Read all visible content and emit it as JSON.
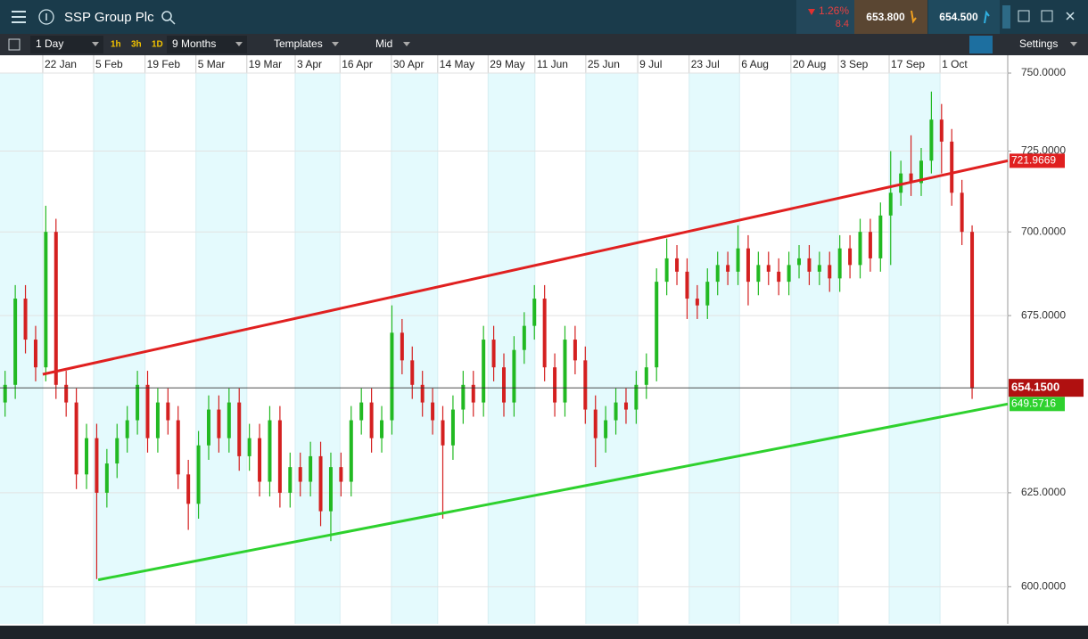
{
  "header": {
    "title": "SSP Group Plc",
    "change_pct": "1.26%",
    "change": "8.4",
    "sell": "653.800",
    "buy": "654.500"
  },
  "toolbar": {
    "interval": "1 Day",
    "quick": [
      "1h",
      "3h",
      "1D"
    ],
    "range": "9 Months",
    "templates": "Templates",
    "price_type": "Mid",
    "settings": "Settings"
  },
  "chart_data": {
    "type": "candlestick",
    "log_scale": true,
    "grid": true,
    "up_color": "#22b922",
    "down_color": "#d42020",
    "xlim": [
      0,
      198
    ],
    "xticks": [
      {
        "value": 8.4,
        "label": "22 Jan"
      },
      {
        "value": 18.4,
        "label": "5 Feb"
      },
      {
        "value": 28.5,
        "label": "19 Feb"
      },
      {
        "value": 38.5,
        "label": "5 Mar"
      },
      {
        "value": 48.5,
        "label": "19 Mar"
      },
      {
        "value": 58,
        "label": "3 Apr"
      },
      {
        "value": 66.8,
        "label": "16 Apr"
      },
      {
        "value": 76.9,
        "label": "30 Apr"
      },
      {
        "value": 86,
        "label": "14 May"
      },
      {
        "value": 95.9,
        "label": "29 May"
      },
      {
        "value": 105.1,
        "label": "11 Jun"
      },
      {
        "value": 115.1,
        "label": "25 Jun"
      },
      {
        "value": 125.3,
        "label": "9 Jul"
      },
      {
        "value": 135.4,
        "label": "23 Jul"
      },
      {
        "value": 145.3,
        "label": "6 Aug"
      },
      {
        "value": 155.4,
        "label": "20 Aug"
      },
      {
        "value": 164.7,
        "label": "3 Sep"
      },
      {
        "value": 174.7,
        "label": "17 Sep"
      },
      {
        "value": 184.7,
        "label": "1 Oct"
      }
    ],
    "ylim": [
      590.4,
      750
    ],
    "yticks": [
      {
        "value": 600,
        "label": "600.0000"
      },
      {
        "value": 625,
        "label": "625.0000"
      },
      {
        "value": 675,
        "label": "675.0000"
      },
      {
        "value": 700,
        "label": "700.0000"
      },
      {
        "value": 725,
        "label": "725.0000"
      },
      {
        "value": 750,
        "label": "750.0000"
      }
    ],
    "x": [
      1,
      3,
      5,
      7,
      9,
      11,
      13,
      15,
      17,
      19,
      21,
      23,
      25,
      27,
      29,
      31,
      33,
      35,
      37,
      39,
      41,
      43,
      45,
      47,
      49,
      51,
      53,
      55,
      57,
      59,
      61,
      63,
      65,
      67,
      69,
      71,
      73,
      75,
      77,
      79,
      81,
      83,
      85,
      87,
      89,
      91,
      93,
      95,
      97,
      99,
      101,
      103,
      105,
      107,
      109,
      111,
      113,
      115,
      117,
      119,
      121,
      123,
      125,
      127,
      129,
      131,
      133,
      135,
      137,
      139,
      141,
      143,
      145,
      147,
      149,
      151,
      153,
      155,
      157,
      159,
      161,
      163,
      165,
      167,
      169,
      171,
      173,
      175,
      177,
      179,
      181,
      183,
      185,
      187,
      189,
      191
    ],
    "open": [
      650,
      655,
      680,
      668,
      660,
      700,
      655,
      650,
      630,
      640,
      625,
      633,
      640,
      645,
      655,
      640,
      650,
      645,
      630,
      622,
      638,
      648,
      640,
      650,
      635,
      640,
      628,
      645,
      625,
      632,
      628,
      635,
      620,
      632,
      628,
      645,
      650,
      640,
      645,
      670,
      662,
      655,
      650,
      645,
      638,
      648,
      655,
      650,
      668,
      660,
      650,
      665,
      672,
      680,
      660,
      650,
      668,
      662,
      648,
      640,
      645,
      650,
      648,
      655,
      660,
      685,
      692,
      688,
      680,
      678,
      685,
      690,
      688,
      695,
      685,
      690,
      688,
      685,
      690,
      692,
      688,
      690,
      686,
      695,
      690,
      700,
      692,
      705,
      712,
      718,
      715,
      722,
      735,
      728,
      712,
      700
    ],
    "high": [
      659,
      684,
      684,
      672,
      708,
      704,
      659,
      654,
      644,
      644,
      637,
      644,
      649,
      659,
      659,
      654,
      654,
      649,
      634,
      642,
      652,
      652,
      654,
      654,
      644,
      644,
      649,
      649,
      636,
      636,
      639,
      639,
      636,
      636,
      649,
      654,
      654,
      649,
      678,
      674,
      666,
      659,
      654,
      649,
      652,
      659,
      659,
      672,
      672,
      664,
      669,
      676,
      684,
      684,
      664,
      672,
      672,
      666,
      652,
      649,
      654,
      654,
      659,
      664,
      689,
      698,
      696,
      692,
      684,
      689,
      694,
      694,
      702,
      699,
      694,
      694,
      692,
      694,
      696,
      696,
      694,
      694,
      699,
      699,
      704,
      704,
      709,
      725,
      722,
      730,
      726,
      744,
      740,
      732,
      716,
      702
    ],
    "low": [
      646,
      651,
      664,
      656,
      656,
      651,
      646,
      626,
      626,
      602,
      621,
      629,
      636,
      641,
      636,
      636,
      641,
      626,
      615,
      618,
      634,
      636,
      636,
      631,
      631,
      624,
      624,
      621,
      621,
      624,
      624,
      616,
      612,
      624,
      624,
      641,
      636,
      636,
      641,
      658,
      651,
      646,
      641,
      618,
      634,
      644,
      646,
      646,
      656,
      646,
      646,
      661,
      668,
      656,
      646,
      646,
      658,
      644,
      632,
      636,
      641,
      644,
      644,
      651,
      656,
      681,
      684,
      674,
      674,
      674,
      681,
      684,
      684,
      678,
      681,
      684,
      681,
      681,
      686,
      684,
      684,
      682,
      682,
      686,
      686,
      688,
      688,
      690,
      708,
      711,
      711,
      718,
      718,
      708,
      696,
      651
    ],
    "close": [
      655,
      680,
      668,
      660,
      700,
      655,
      650,
      630,
      640,
      625,
      633,
      640,
      645,
      655,
      640,
      650,
      645,
      630,
      622,
      638,
      648,
      640,
      650,
      635,
      640,
      628,
      645,
      625,
      632,
      628,
      635,
      620,
      632,
      628,
      645,
      650,
      640,
      645,
      670,
      662,
      655,
      650,
      645,
      638,
      648,
      655,
      650,
      668,
      660,
      650,
      665,
      672,
      680,
      660,
      650,
      668,
      662,
      648,
      640,
      645,
      650,
      648,
      655,
      660,
      685,
      692,
      688,
      680,
      678,
      685,
      690,
      688,
      695,
      685,
      690,
      688,
      685,
      690,
      692,
      688,
      690,
      686,
      695,
      690,
      700,
      692,
      705,
      712,
      718,
      715,
      722,
      735,
      728,
      712,
      700,
      654
    ],
    "trendlines": [
      {
        "x": [
          8.4,
          198
        ],
        "y": [
          658,
          721.9669
        ],
        "color": "#e02020"
      },
      {
        "x": [
          19.3,
          198
        ],
        "y": [
          601.8,
          649.5716
        ],
        "color": "#2ed12e"
      }
    ],
    "price_line": {
      "value": 654.15,
      "label": "654.1500"
    }
  }
}
